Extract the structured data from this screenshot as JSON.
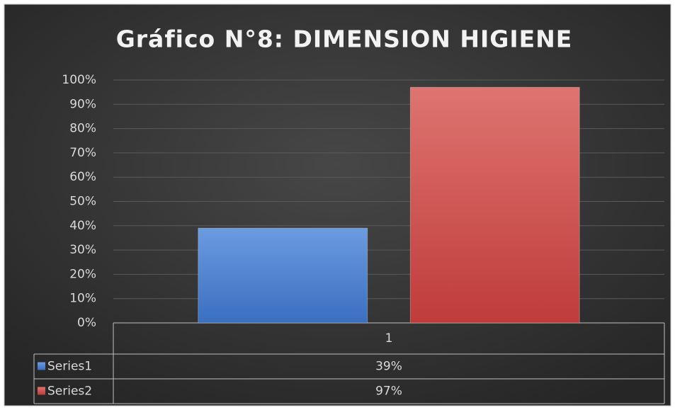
{
  "chart_data": {
    "type": "bar",
    "title": "Gráfico N°8: DIMENSION HIGIENE",
    "categories": [
      "1"
    ],
    "series": [
      {
        "name": "Series1",
        "color": "#4a7fcf",
        "values": [
          39
        ],
        "value_labels": [
          "39%"
        ]
      },
      {
        "name": "Series2",
        "color": "#cf4a47",
        "values": [
          97
        ],
        "value_labels": [
          "97%"
        ]
      }
    ],
    "ylim": [
      0,
      100
    ],
    "yticks": [
      {
        "value": 0,
        "label": "0%"
      },
      {
        "value": 10,
        "label": "10%"
      },
      {
        "value": 20,
        "label": "20%"
      },
      {
        "value": 30,
        "label": "30%"
      },
      {
        "value": 40,
        "label": "40%"
      },
      {
        "value": 50,
        "label": "50%"
      },
      {
        "value": 60,
        "label": "60%"
      },
      {
        "value": 70,
        "label": "70%"
      },
      {
        "value": 80,
        "label": "80%"
      },
      {
        "value": 90,
        "label": "90%"
      },
      {
        "value": 100,
        "label": "100%"
      }
    ],
    "grid": true,
    "data_table": true
  }
}
